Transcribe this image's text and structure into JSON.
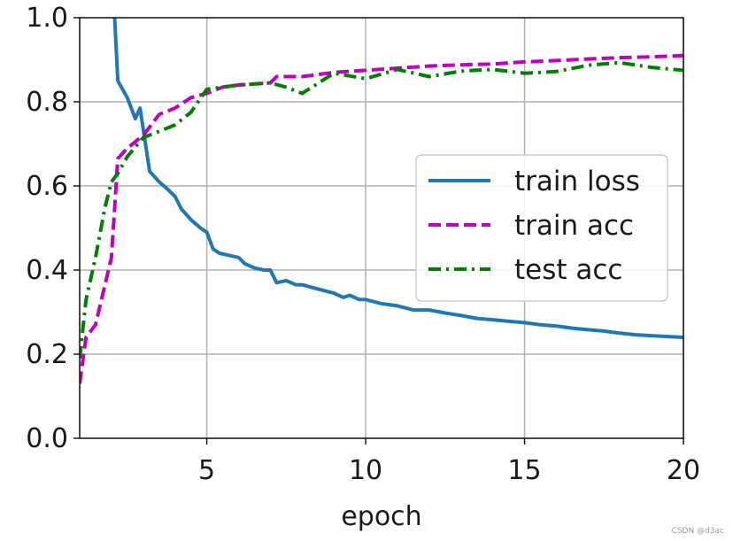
{
  "chart_data": {
    "type": "line",
    "xlabel": "epoch",
    "ylabel": "",
    "xlim": [
      1,
      20
    ],
    "ylim": [
      0,
      1.0
    ],
    "xticks": [
      5,
      10,
      15,
      20
    ],
    "yticks": [
      0.0,
      0.2,
      0.4,
      0.6,
      0.8,
      1.0
    ],
    "xtick_labels": [
      "5",
      "10",
      "15",
      "20"
    ],
    "ytick_labels": [
      "0.0",
      "0.2",
      "0.4",
      "0.6",
      "0.8",
      "1.0"
    ],
    "grid": true,
    "legend_position": "center-right",
    "series": [
      {
        "name": "train loss",
        "color": "#1f77b4",
        "style": "solid",
        "x": [
          2.1,
          2.2,
          2.5,
          2.75,
          2.9,
          3.2,
          3.5,
          3.8,
          4.0,
          4.2,
          4.5,
          4.8,
          5.0,
          5.2,
          5.4,
          5.7,
          6.0,
          6.2,
          6.5,
          6.8,
          7.0,
          7.2,
          7.5,
          7.8,
          8.0,
          8.5,
          9.0,
          9.3,
          9.5,
          9.8,
          10.0,
          10.5,
          11.0,
          11.5,
          12.0,
          12.5,
          13.0,
          13.5,
          14.0,
          14.5,
          15.0,
          15.5,
          16.0,
          16.5,
          17.0,
          17.5,
          18.0,
          18.5,
          19.0,
          19.5,
          20.0
        ],
        "values": [
          1.0,
          0.85,
          0.81,
          0.76,
          0.785,
          0.635,
          0.61,
          0.59,
          0.575,
          0.545,
          0.52,
          0.5,
          0.49,
          0.45,
          0.44,
          0.435,
          0.43,
          0.415,
          0.405,
          0.4,
          0.4,
          0.37,
          0.375,
          0.365,
          0.365,
          0.355,
          0.345,
          0.335,
          0.34,
          0.33,
          0.33,
          0.32,
          0.315,
          0.305,
          0.305,
          0.298,
          0.292,
          0.285,
          0.282,
          0.278,
          0.275,
          0.27,
          0.267,
          0.262,
          0.258,
          0.255,
          0.25,
          0.246,
          0.244,
          0.242,
          0.24
        ]
      },
      {
        "name": "train acc",
        "color": "#bf00bf",
        "style": "dashed",
        "x": [
          1.0,
          1.2,
          1.5,
          2.0,
          2.2,
          2.5,
          3.0,
          3.5,
          4.0,
          4.5,
          5.0,
          5.5,
          6.0,
          7.0,
          7.2,
          8.0,
          9.0,
          10.0,
          11.0,
          12.0,
          13.0,
          14.0,
          15.0,
          16.0,
          17.0,
          18.0,
          19.0,
          20.0
        ],
        "values": [
          0.13,
          0.24,
          0.27,
          0.43,
          0.665,
          0.69,
          0.72,
          0.77,
          0.785,
          0.81,
          0.82,
          0.835,
          0.84,
          0.845,
          0.86,
          0.86,
          0.87,
          0.875,
          0.88,
          0.885,
          0.888,
          0.89,
          0.895,
          0.898,
          0.902,
          0.905,
          0.907,
          0.91
        ]
      },
      {
        "name": "test acc",
        "color": "#007f00",
        "style": "dashdot",
        "x": [
          1.0,
          1.2,
          1.5,
          1.8,
          2.0,
          2.2,
          2.5,
          3.0,
          3.5,
          4.0,
          4.5,
          5.0,
          5.5,
          6.0,
          7.0,
          7.5,
          8.0,
          9.0,
          10.0,
          11.0,
          12.0,
          13.0,
          14.0,
          15.0,
          16.0,
          17.0,
          18.0,
          19.0,
          20.0
        ],
        "values": [
          0.19,
          0.33,
          0.43,
          0.55,
          0.61,
          0.63,
          0.67,
          0.715,
          0.73,
          0.745,
          0.775,
          0.83,
          0.835,
          0.84,
          0.845,
          0.835,
          0.82,
          0.868,
          0.855,
          0.877,
          0.86,
          0.873,
          0.877,
          0.868,
          0.872,
          0.887,
          0.893,
          0.882,
          0.875
        ]
      }
    ]
  },
  "watermark": "CSDN @d3ac"
}
